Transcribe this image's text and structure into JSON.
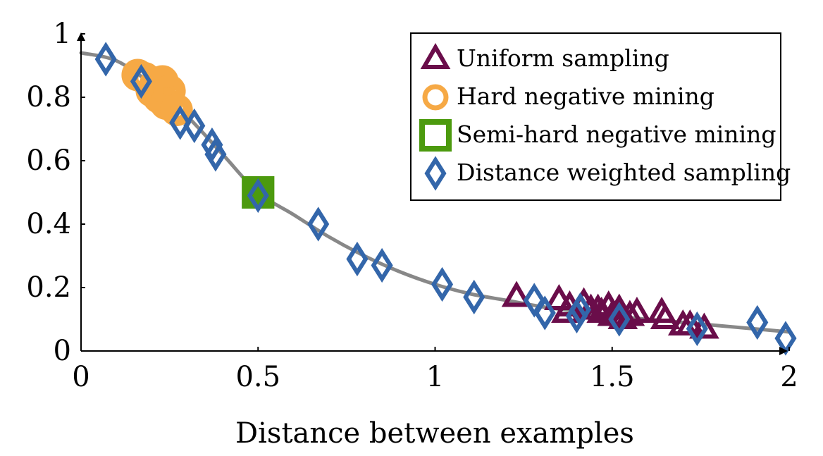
{
  "chart_data": {
    "type": "scatter",
    "xlabel": "Distance between examples",
    "ylabel": "",
    "xlim": [
      0,
      2
    ],
    "ylim": [
      0,
      1
    ],
    "x_ticks": [
      0,
      0.5,
      1,
      1.5,
      2
    ],
    "x_tick_labels": [
      "0",
      "0.5",
      "1",
      "1.5",
      "2"
    ],
    "y_ticks": [
      0,
      0.2,
      0.4,
      0.6,
      0.8,
      1
    ],
    "y_tick_labels": [
      "0",
      "0.2",
      "0.4",
      "0.6",
      "0.8",
      "1"
    ],
    "grid": false,
    "legend_position": "top-right",
    "curve": {
      "color": "#888888",
      "points": [
        [
          0,
          0.94
        ],
        [
          0.1,
          0.915
        ],
        [
          0.2,
          0.84
        ],
        [
          0.3,
          0.74
        ],
        [
          0.4,
          0.62
        ],
        [
          0.5,
          0.5
        ],
        [
          0.6,
          0.43
        ],
        [
          0.7,
          0.36
        ],
        [
          0.8,
          0.3
        ],
        [
          0.9,
          0.25
        ],
        [
          1.0,
          0.21
        ],
        [
          1.1,
          0.18
        ],
        [
          1.2,
          0.16
        ],
        [
          1.3,
          0.14
        ],
        [
          1.4,
          0.125
        ],
        [
          1.5,
          0.11
        ],
        [
          1.6,
          0.1
        ],
        [
          1.7,
          0.09
        ],
        [
          1.8,
          0.08
        ],
        [
          1.9,
          0.07
        ],
        [
          2.0,
          0.06
        ]
      ]
    },
    "series": [
      {
        "name": "Uniform sampling",
        "marker": "triangle",
        "color": "#6a0d4a",
        "x": [
          1.23,
          1.35,
          1.37,
          1.38,
          1.42,
          1.44,
          1.46,
          1.47,
          1.49,
          1.5,
          1.52,
          1.53,
          1.55,
          1.57,
          1.64,
          1.65,
          1.7,
          1.72,
          1.76
        ],
        "y": [
          0.17,
          0.16,
          0.12,
          0.14,
          0.15,
          0.13,
          0.13,
          0.12,
          0.14,
          0.11,
          0.13,
          0.1,
          0.11,
          0.12,
          0.12,
          0.1,
          0.08,
          0.08,
          0.07
        ]
      },
      {
        "name": "Hard negative mining",
        "marker": "circle",
        "color": "#f6a945",
        "x": [
          0.16,
          0.18,
          0.2,
          0.21,
          0.22,
          0.23,
          0.24,
          0.25,
          0.27
        ],
        "y": [
          0.87,
          0.86,
          0.82,
          0.84,
          0.8,
          0.85,
          0.78,
          0.82,
          0.76
        ]
      },
      {
        "name": "Semi-hard negative mining",
        "marker": "square",
        "color": "#4c9a0e",
        "x": [
          0.5,
          0.5
        ],
        "y": [
          0.5,
          0.5
        ]
      },
      {
        "name": "Distance weighted sampling",
        "marker": "diamond",
        "color": "#3366aa",
        "x": [
          0.07,
          0.17,
          0.28,
          0.32,
          0.37,
          0.38,
          0.5,
          0.67,
          0.78,
          0.85,
          1.02,
          1.11,
          1.28,
          1.31,
          1.4,
          1.41,
          1.52,
          1.74,
          1.91,
          1.99
        ],
        "y": [
          0.92,
          0.85,
          0.72,
          0.71,
          0.65,
          0.62,
          0.49,
          0.4,
          0.29,
          0.27,
          0.21,
          0.17,
          0.16,
          0.12,
          0.11,
          0.13,
          0.1,
          0.07,
          0.09,
          0.04
        ]
      }
    ]
  }
}
